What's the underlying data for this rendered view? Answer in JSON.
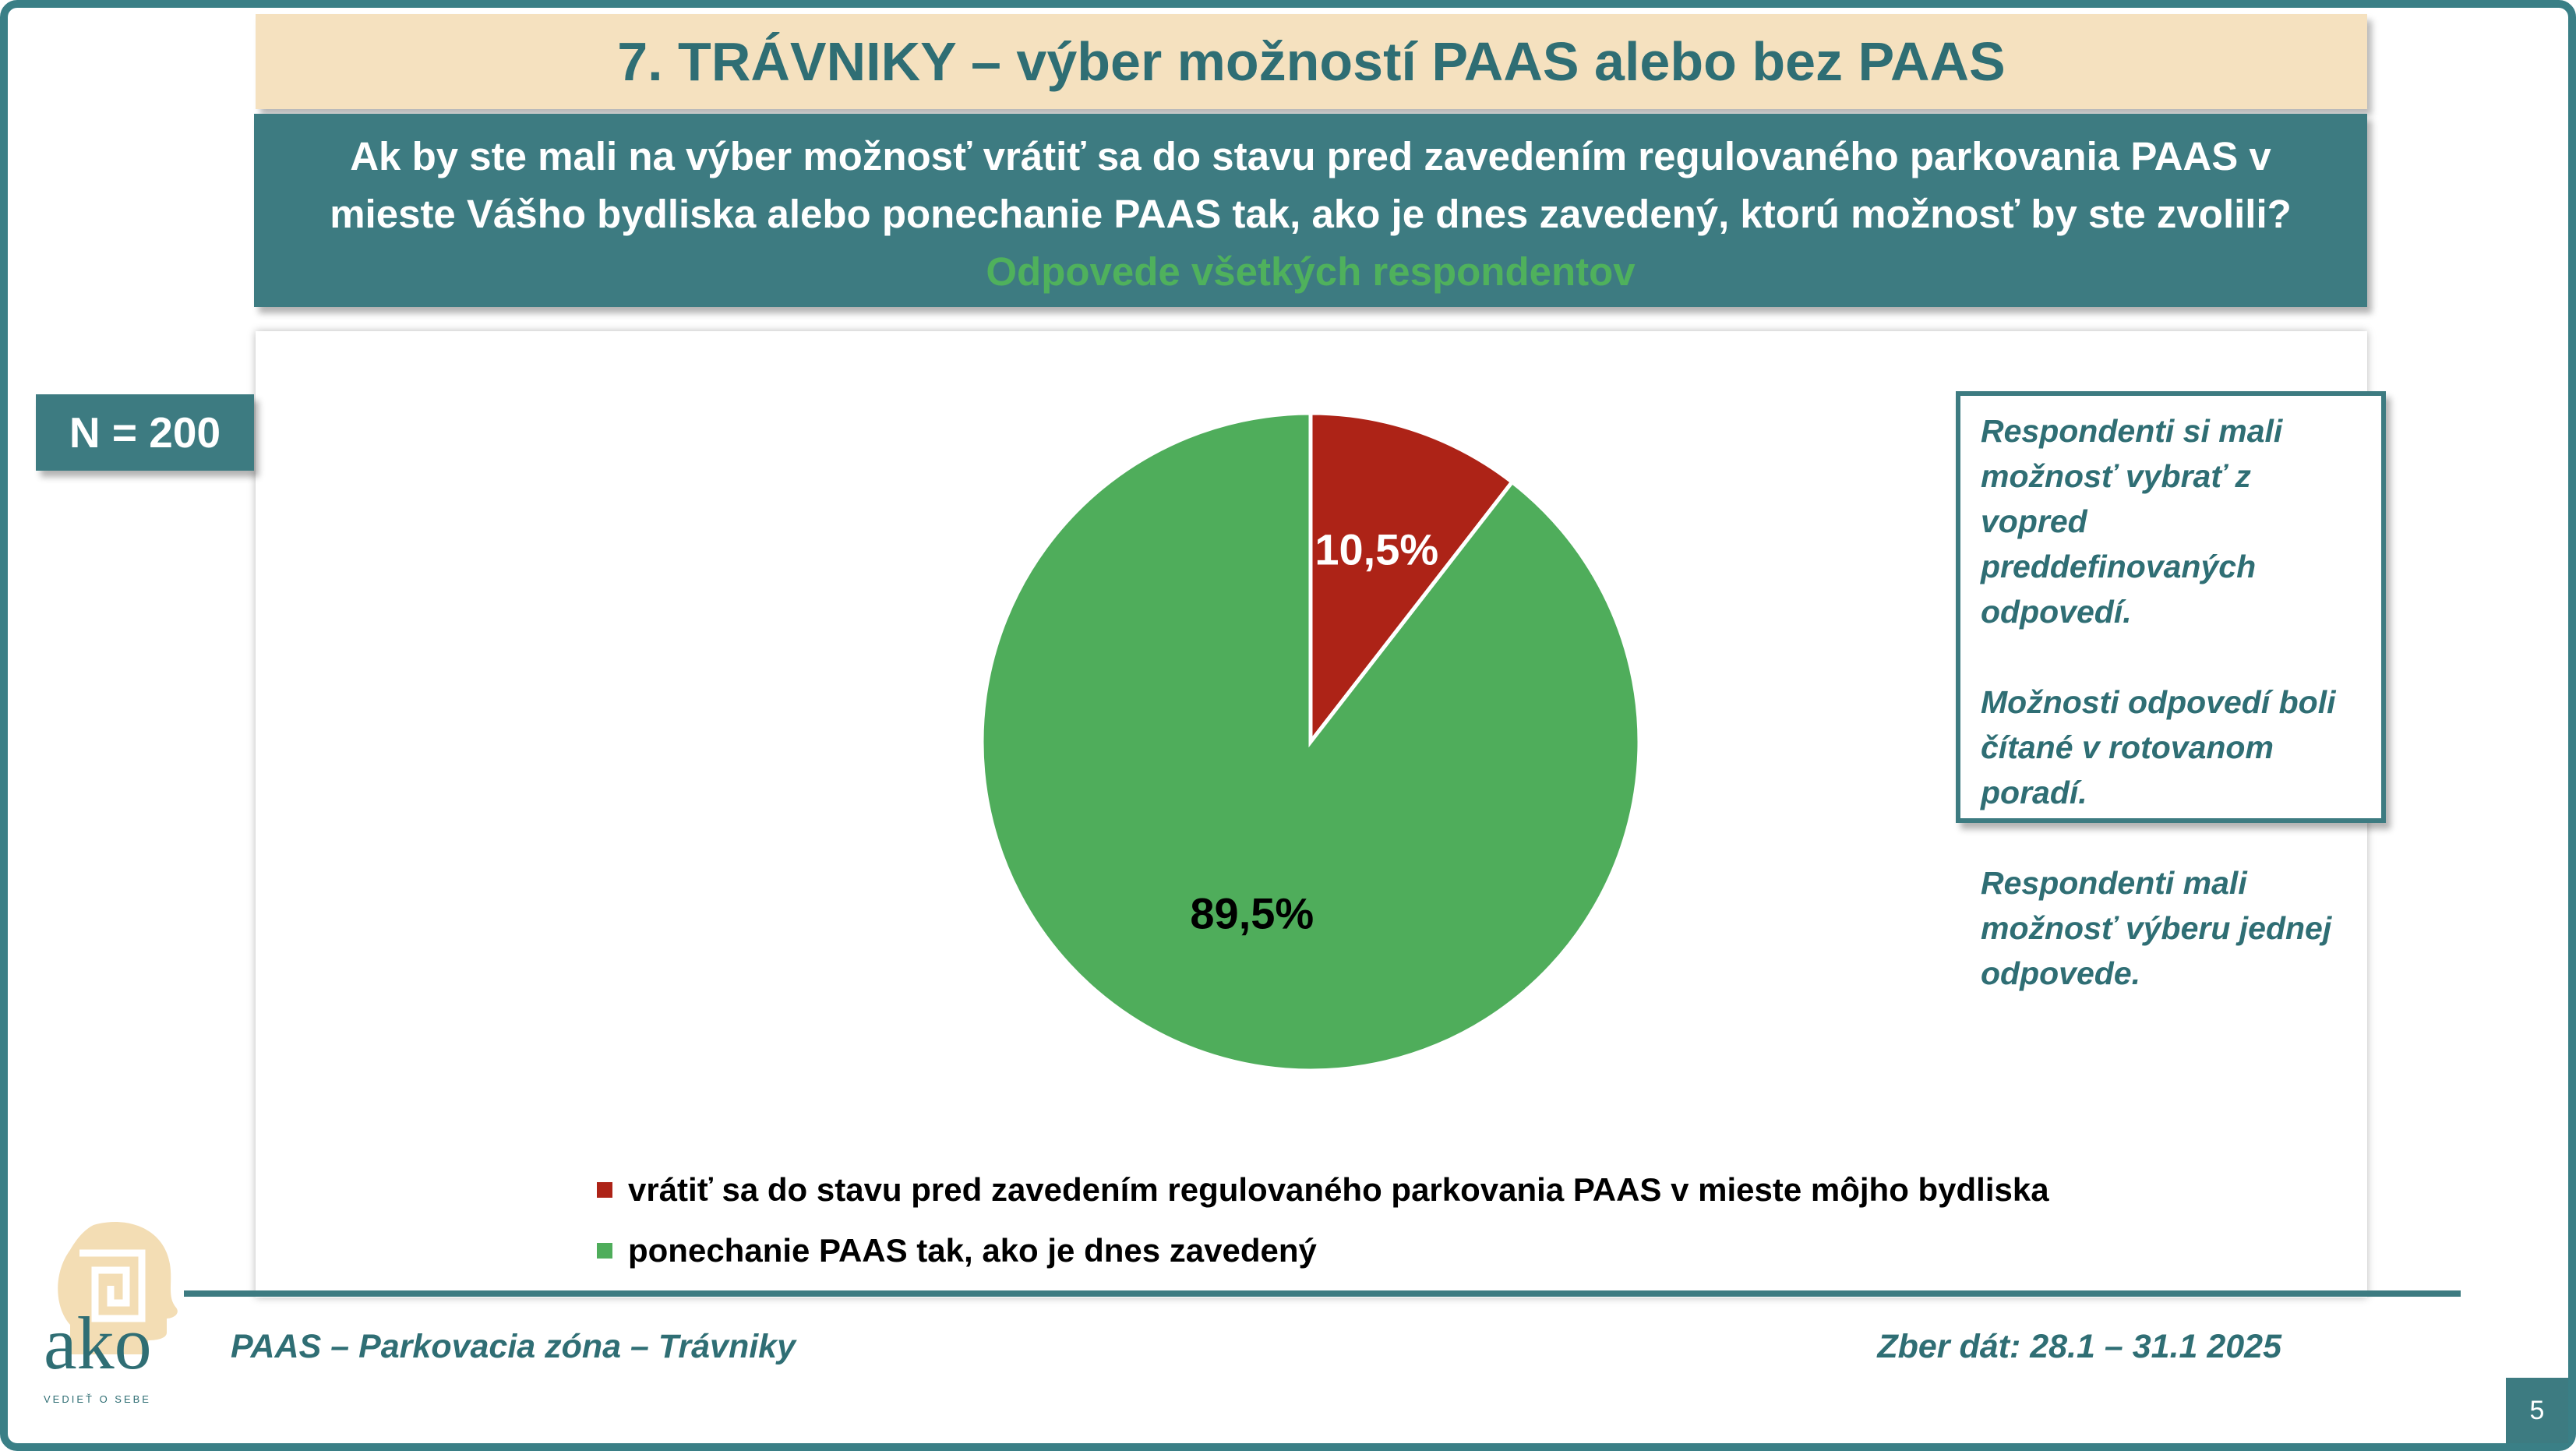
{
  "title": "7. TRÁVNIKY – výber možností PAAS alebo bez PAAS",
  "question": {
    "line1": "Ak by ste mali na výber možnosť vrátiť sa do stavu pred zavedením regulovaného parkovania PAAS  v",
    "line2": "mieste Vášho bydliska alebo ponechanie PAAS tak, ako je dnes zavedený, ktorú možnosť by ste zvolili?",
    "subtitle": "Odpovede všetkých respondentov"
  },
  "sample_badge": "N = 200",
  "note": {
    "p1": "Respondenti si mali možnosť vybrať z vopred preddefinovaných odpovedí.",
    "p2": "Možnosti odpovedí boli čítané v rotovanom poradí.",
    "p3": "Respondenti mali možnosť výberu jednej odpovede."
  },
  "chart_data": {
    "type": "pie",
    "slices": [
      {
        "label": "vrátiť sa do stavu pred zavedením regulovaného parkovania PAAS v mieste môjho bydliska",
        "value": 10.5,
        "display": "10,5%",
        "color": "#ad2317"
      },
      {
        "label": "ponechanie PAAS tak, ako je dnes zavedený",
        "value": 89.5,
        "display": "89,5%",
        "color": "#4fad5b"
      }
    ],
    "legend_position": "bottom"
  },
  "footer": {
    "left": "PAAS – Parkovacia zóna – Trávniky",
    "right": "Zber dát: 28.1 – 31.1 2025",
    "page": "5"
  },
  "logo": {
    "word": "ako",
    "tagline": "VEDIEŤ O SEBE"
  }
}
